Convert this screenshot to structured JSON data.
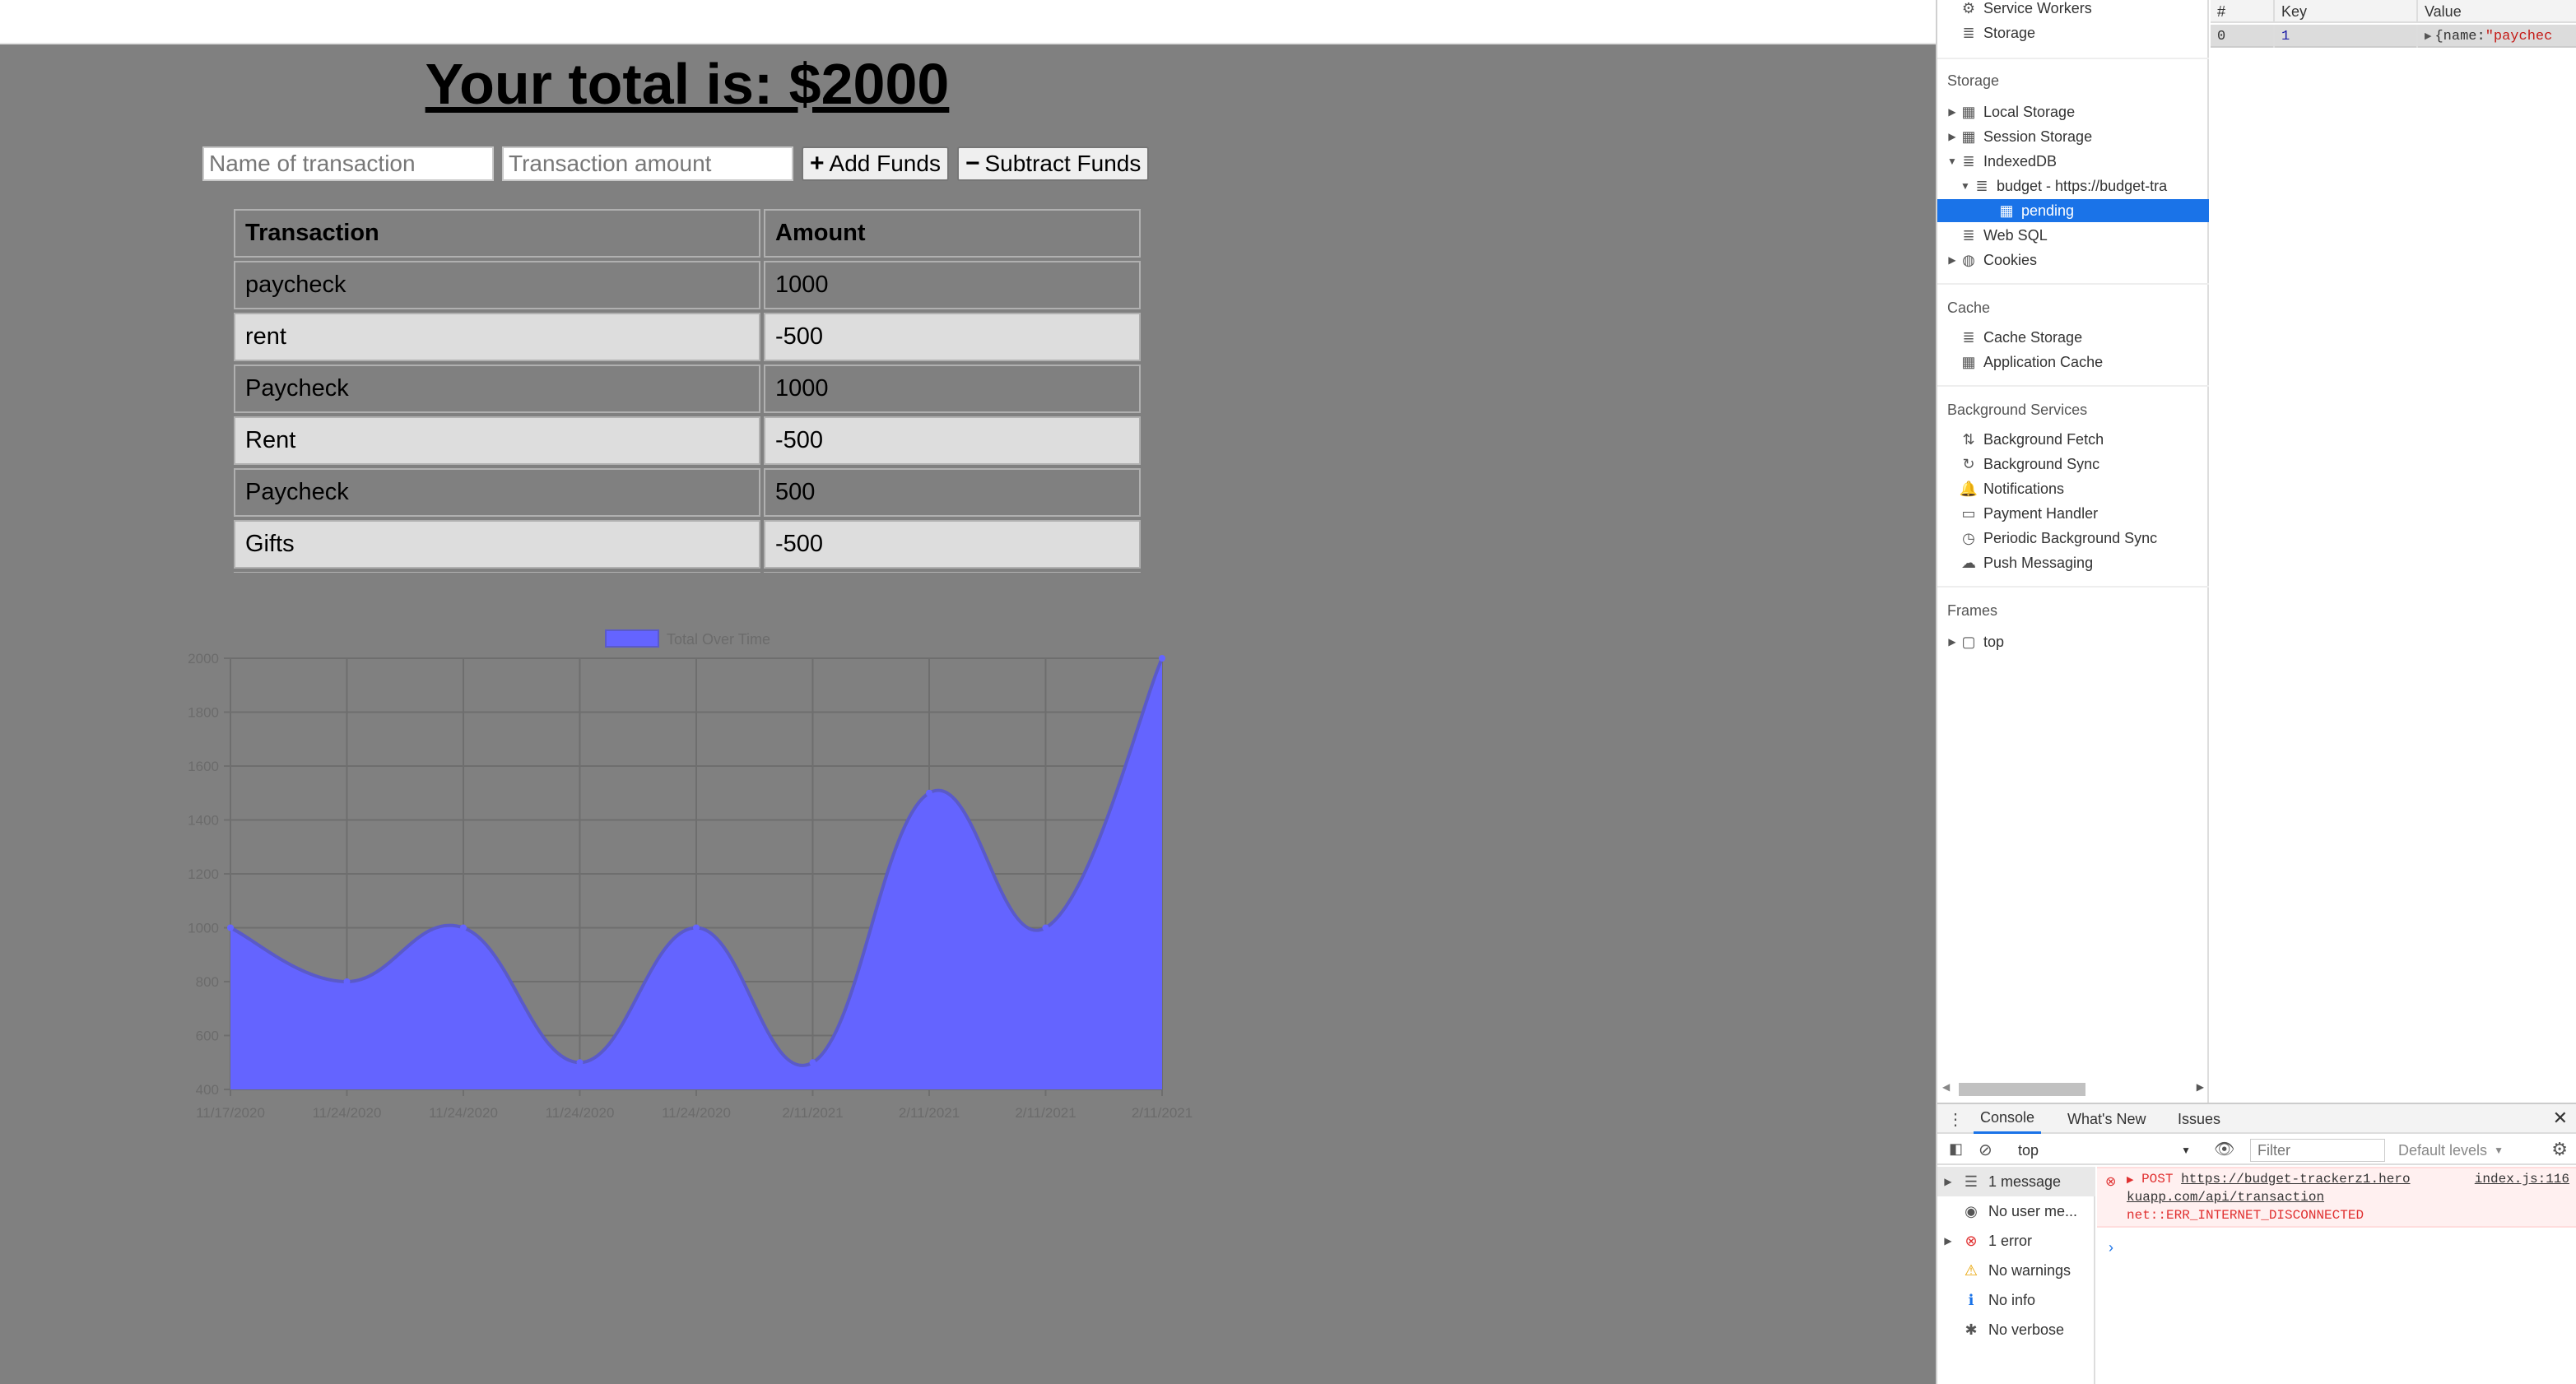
{
  "app": {
    "total_text": "Your total is: $2000",
    "name_placeholder": "Name of transaction",
    "amount_placeholder": "Transaction amount",
    "add_button": "Add Funds",
    "subtract_button": "Subtract Funds",
    "table_headers": [
      "Transaction",
      "Amount"
    ],
    "rows": [
      {
        "name": "paycheck",
        "amount": "1000"
      },
      {
        "name": "rent",
        "amount": "-500"
      },
      {
        "name": "Paycheck",
        "amount": "1000"
      },
      {
        "name": "Rent",
        "amount": "-500"
      },
      {
        "name": "Paycheck",
        "amount": "500"
      },
      {
        "name": "Gifts",
        "amount": "-500"
      }
    ]
  },
  "chart_data": {
    "type": "area",
    "x": [
      "11/17/2020",
      "11/24/2020",
      "11/24/2020",
      "11/24/2020",
      "11/24/2020",
      "2/11/2021",
      "2/11/2021",
      "2/11/2021",
      "2/11/2021"
    ],
    "series": [
      {
        "name": "Total Over Time",
        "values": [
          1000,
          800,
          1000,
          500,
          1000,
          500,
          1500,
          1000,
          2000
        ]
      }
    ],
    "ylim": [
      400,
      2000
    ],
    "yticks": [
      "2000",
      "1800",
      "1600",
      "1400",
      "1200",
      "1000",
      "800",
      "600",
      "400"
    ],
    "grid": true,
    "legend": "top-center",
    "fill_color": "#6464ff",
    "line_color": "#5a5ac8"
  },
  "devtools": {
    "sidebar": {
      "top_items": [
        {
          "label": "Service Workers",
          "icon": "gear-icon"
        },
        {
          "label": "Storage",
          "icon": "database-icon"
        }
      ],
      "storage_header": "Storage",
      "storage_items": [
        {
          "label": "Local Storage",
          "icon": "grid-icon",
          "arrow": "right"
        },
        {
          "label": "Session Storage",
          "icon": "grid-icon",
          "arrow": "right"
        },
        {
          "label": "IndexedDB",
          "icon": "database-icon",
          "arrow": "down"
        },
        {
          "label": "budget - https://budget-tra",
          "icon": "database-icon",
          "arrow": "down"
        },
        {
          "label": "pending",
          "icon": "grid-icon",
          "arrow": ""
        },
        {
          "label": "Web SQL",
          "icon": "database-icon",
          "arrow": ""
        },
        {
          "label": "Cookies",
          "icon": "cookie-icon",
          "arrow": "right"
        }
      ],
      "cache_header": "Cache",
      "cache_items": [
        {
          "label": "Cache Storage",
          "icon": "database-icon"
        },
        {
          "label": "Application Cache",
          "icon": "grid-icon"
        }
      ],
      "bg_header": "Background Services",
      "bg_items": [
        {
          "label": "Background Fetch",
          "icon": "updown-icon"
        },
        {
          "label": "Background Sync",
          "icon": "sync-icon"
        },
        {
          "label": "Notifications",
          "icon": "bell-icon"
        },
        {
          "label": "Payment Handler",
          "icon": "card-icon"
        },
        {
          "label": "Periodic Background Sync",
          "icon": "clock-icon"
        },
        {
          "label": "Push Messaging",
          "icon": "cloud-icon"
        }
      ],
      "frames_header": "Frames",
      "frames_items": [
        {
          "label": "top",
          "icon": "frame-icon"
        }
      ]
    },
    "idb_table": {
      "headers": [
        "#",
        "Key",
        "Value"
      ],
      "row": {
        "index": "0",
        "key": "1",
        "value_prefix": "{name: ",
        "value_string": "\"paychec"
      }
    },
    "console": {
      "tabs": [
        "Console",
        "What's New",
        "Issues"
      ],
      "context": "top",
      "filter_placeholder": "Filter",
      "levels": "Default levels",
      "sidebar": [
        {
          "label": "1 message",
          "icon": "list-icon",
          "arrow": true
        },
        {
          "label": "No user me...",
          "icon": "user-icon",
          "arrow": false
        },
        {
          "label": "1 error",
          "icon": "error-icon",
          "arrow": true
        },
        {
          "label": "No warnings",
          "icon": "warning-icon",
          "arrow": false
        },
        {
          "label": "No info",
          "icon": "info-icon",
          "arrow": false
        },
        {
          "label": "No verbose",
          "icon": "bug-icon",
          "arrow": false
        }
      ],
      "error": {
        "method": "POST",
        "url1": "https://budget-trackerz1.hero",
        "url2": "kuapp.com/api/transaction",
        "source": "index.js:116",
        "message": "net::ERR_INTERNET_DISCONNECTED"
      },
      "prompt": "›"
    }
  }
}
